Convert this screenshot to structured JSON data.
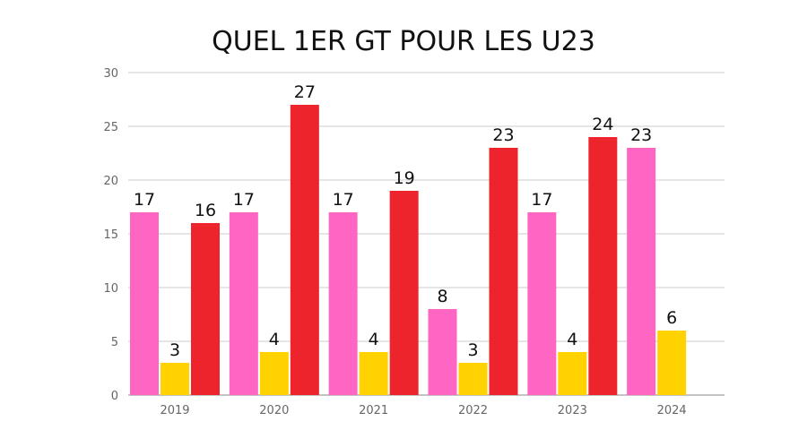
{
  "chart_data": {
    "type": "bar",
    "title": "QUEL 1ER GT POUR LES U23",
    "xlabel": "",
    "ylabel": "",
    "categories": [
      "2019",
      "2020",
      "2021",
      "2022",
      "2023",
      "2024"
    ],
    "series": [
      {
        "color": "#FF66C4",
        "values": [
          17,
          17,
          17,
          8,
          17,
          23
        ]
      },
      {
        "color": "#FFD200",
        "values": [
          3,
          4,
          4,
          3,
          4,
          6
        ]
      },
      {
        "color": "#EE242C",
        "values": [
          16,
          27,
          19,
          23,
          24,
          null
        ]
      }
    ],
    "ylim": [
      0,
      30
    ],
    "yticks": [
      0,
      5,
      10,
      15,
      20,
      25,
      30
    ],
    "grid": true,
    "legend": "none",
    "data_labels": true
  }
}
